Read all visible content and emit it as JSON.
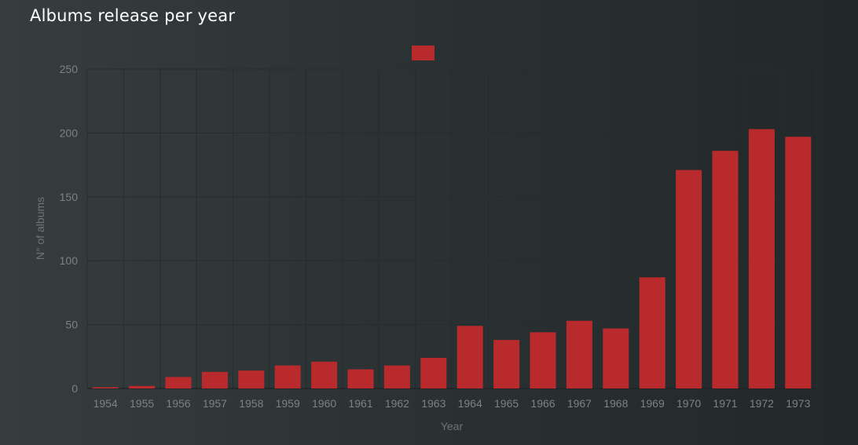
{
  "title": "Albums release per year",
  "colors": {
    "bar": "#b92a2c",
    "grid": "#262d2e",
    "axis_text": "#7b8283"
  },
  "chart_data": {
    "type": "bar",
    "title": "Albums release per year",
    "xlabel": "Year",
    "ylabel": "N° of albums",
    "legend": "top-center",
    "grid": true,
    "ylim": [
      0,
      250
    ],
    "yticks": [
      0,
      50,
      100,
      150,
      200,
      250
    ],
    "categories": [
      "1954",
      "1955",
      "1956",
      "1957",
      "1958",
      "1959",
      "1960",
      "1961",
      "1962",
      "1963",
      "1964",
      "1965",
      "1966",
      "1967",
      "1968",
      "1969",
      "1970",
      "1971",
      "1972",
      "1973"
    ],
    "series": [
      {
        "values": [
          1,
          2,
          9,
          13,
          14,
          18,
          21,
          15,
          18,
          24,
          49,
          38,
          44,
          53,
          47,
          87,
          171,
          186,
          203,
          197
        ]
      }
    ]
  }
}
